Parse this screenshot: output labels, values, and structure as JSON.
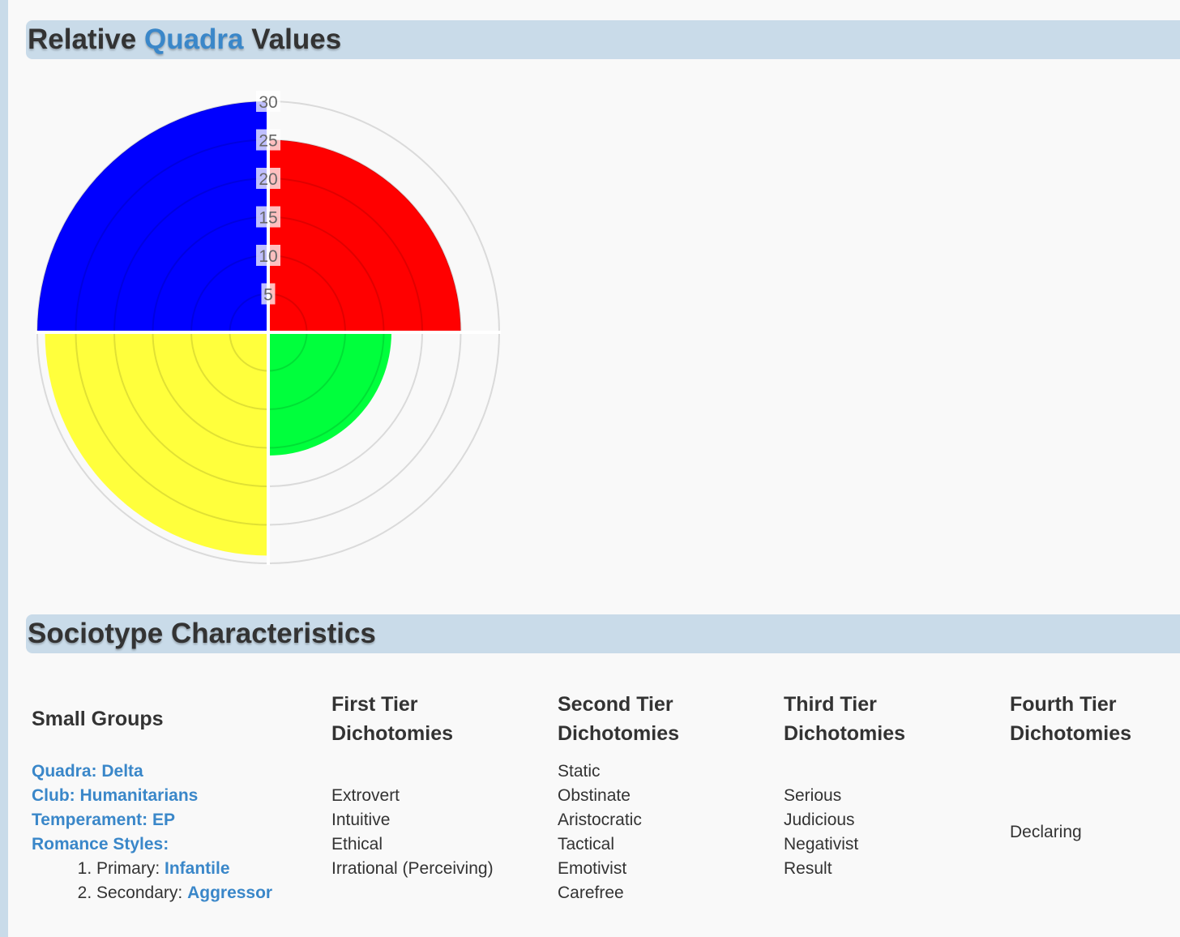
{
  "values_section": {
    "title_pre": "Relative ",
    "title_accent": "Quadra",
    "title_post": " Values"
  },
  "chart_data": {
    "type": "polar-area",
    "title": "Relative Quadra Values",
    "radial_range": [
      0,
      30
    ],
    "radial_ticks": [
      "5",
      "10",
      "15",
      "20",
      "25",
      "30"
    ],
    "grid": true,
    "sectors": [
      {
        "quadrant": "top-right",
        "value": 25,
        "color": "#ff0000"
      },
      {
        "quadrant": "bottom-right",
        "value": 16,
        "color": "#00ff3c"
      },
      {
        "quadrant": "bottom-left",
        "value": 29,
        "color": "#ffff3c"
      },
      {
        "quadrant": "top-left",
        "value": 30,
        "color": "#0000ff"
      }
    ]
  },
  "characteristics": {
    "title": "Sociotype Characteristics",
    "small_groups": {
      "heading": "Small Groups",
      "quadra": "Quadra: Delta",
      "club": "Club: Humanitarians",
      "temperament": "Temperament: EP",
      "romance": "Romance Styles:",
      "primary_label": "Primary: ",
      "primary_value": "Infantile",
      "secondary_label": "Secondary: ",
      "secondary_value": "Aggressor"
    },
    "first_tier": {
      "heading_1": "First Tier",
      "heading_2": "Dichotomies",
      "items": [
        "Extrovert",
        "Intuitive",
        "Ethical",
        "Irrational (Perceiving)"
      ]
    },
    "second_tier": {
      "heading_1": "Second Tier",
      "heading_2": "Dichotomies",
      "items": [
        "Static",
        "Obstinate",
        "Aristocratic",
        "Tactical",
        "Emotivist",
        "Carefree"
      ]
    },
    "third_tier": {
      "heading_1": "Third Tier",
      "heading_2": "Dichotomies",
      "items": [
        "Serious",
        "Judicious",
        "Negativist",
        "Result"
      ]
    },
    "fourth_tier": {
      "heading_1": "Fourth Tier",
      "heading_2": "Dichotomies",
      "items": [
        "Declaring"
      ]
    }
  }
}
